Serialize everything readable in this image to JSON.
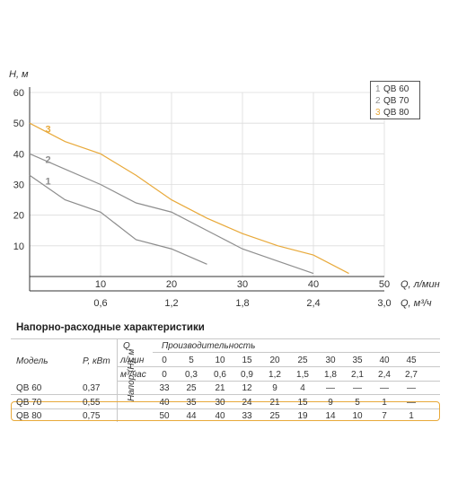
{
  "chart_data": {
    "type": "line",
    "ylabel": "H, м",
    "xlabel": "Q, л/мин",
    "xlabel2": "Q, м³/ч",
    "xlim": [
      0,
      50
    ],
    "ylim": [
      0,
      60
    ],
    "y_ticks": [
      "10",
      "20",
      "30",
      "40",
      "50",
      "60"
    ],
    "x_ticks": [
      "10",
      "20",
      "30",
      "40",
      "50"
    ],
    "x2_ticks": [
      "0,6",
      "1,2",
      "1,8",
      "2,4",
      "3,0"
    ],
    "series": [
      {
        "name": "QB 60",
        "label": "1",
        "color": "#8c8c8c",
        "x": [
          0,
          5,
          10,
          15,
          20,
          25
        ],
        "y": [
          33,
          25,
          21,
          12,
          9,
          4
        ]
      },
      {
        "name": "QB 70",
        "label": "2",
        "color": "#8f8f8f",
        "x": [
          0,
          5,
          10,
          15,
          20,
          25,
          30,
          35,
          40
        ],
        "y": [
          40,
          35,
          30,
          24,
          21,
          15,
          9,
          5,
          1
        ]
      },
      {
        "name": "QB 80",
        "label": "3",
        "color": "#e8a93a",
        "x": [
          0,
          5,
          10,
          15,
          20,
          25,
          30,
          35,
          40,
          45
        ],
        "y": [
          50,
          44,
          40,
          33,
          25,
          19,
          14,
          10,
          7,
          1
        ]
      }
    ],
    "legend": {
      "placement": "top-right",
      "items": [
        {
          "num": "1",
          "label": "QB 60"
        },
        {
          "num": "2",
          "label": "QB 70"
        },
        {
          "num": "3",
          "label": "QB 80"
        }
      ]
    }
  },
  "table": {
    "title": "Напорно-расходные характеристики",
    "head_model": "Модель",
    "head_power": "P, кВт",
    "head_q": "Q",
    "head_productivity": "Производительность",
    "head_lmin": "л/мин",
    "head_m3h": "м³/час",
    "head_pressure": "Напор (Н), м",
    "lmin_values": [
      "0",
      "5",
      "10",
      "15",
      "20",
      "25",
      "30",
      "35",
      "40",
      "45"
    ],
    "m3h_values": [
      "0",
      "0,3",
      "0,6",
      "0,9",
      "1,2",
      "1,5",
      "1,8",
      "2,1",
      "2,4",
      "2,7"
    ],
    "rows": [
      {
        "model": "QB 60",
        "power": "0,37",
        "values": [
          "33",
          "25",
          "21",
          "12",
          "9",
          "4",
          "—",
          "—",
          "—",
          "—"
        ]
      },
      {
        "model": "QB 70",
        "power": "0,55",
        "values": [
          "40",
          "35",
          "30",
          "24",
          "21",
          "15",
          "9",
          "5",
          "1",
          "—"
        ]
      },
      {
        "model": "QB 80",
        "power": "0,75",
        "values": [
          "50",
          "44",
          "40",
          "33",
          "25",
          "19",
          "14",
          "10",
          "7",
          "1"
        ]
      }
    ]
  },
  "colors": {
    "accent": "#e8a93a",
    "curve_gray": "#8c8c8c",
    "axis": "#333333"
  }
}
